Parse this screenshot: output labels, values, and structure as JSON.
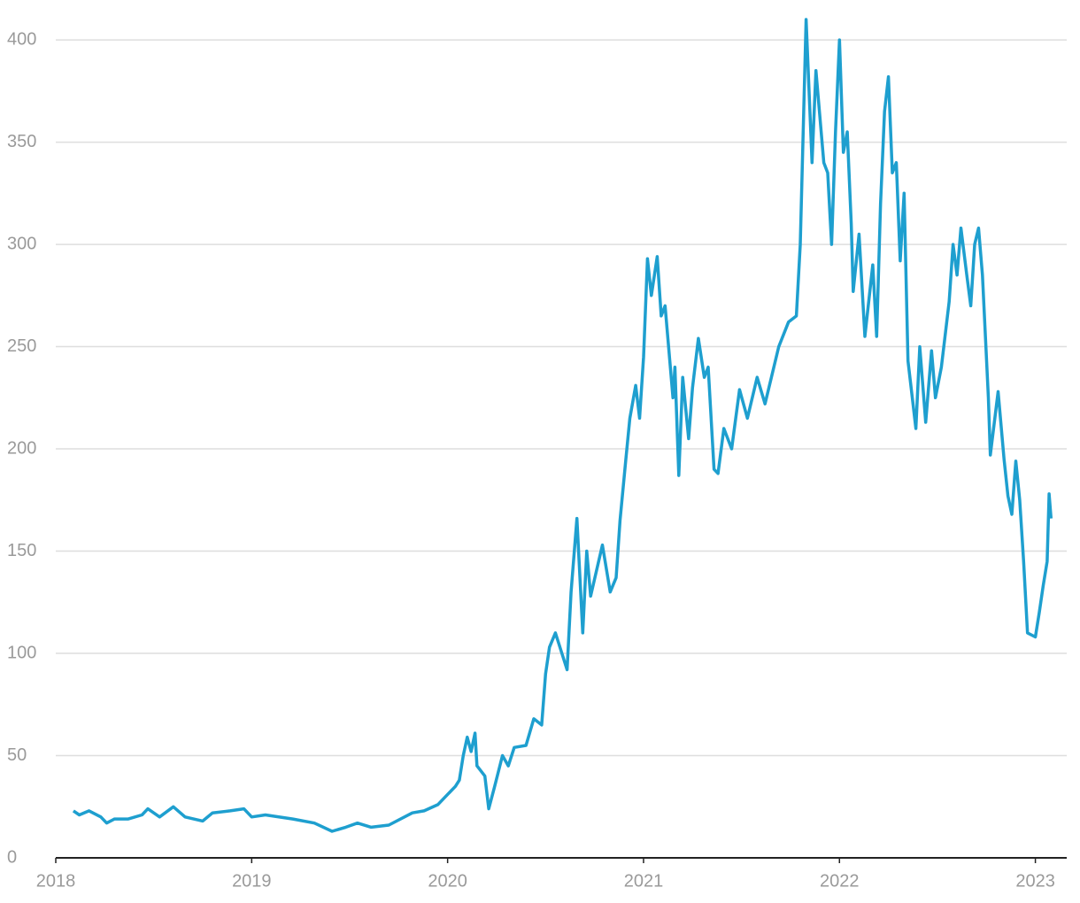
{
  "chart_data": {
    "type": "line",
    "x": [
      2018.09,
      2018.12,
      2018.17,
      2018.23,
      2018.26,
      2018.3,
      2018.37,
      2018.44,
      2018.47,
      2018.53,
      2018.6,
      2018.66,
      2018.75,
      2018.8,
      2018.89,
      2018.96,
      2019.0,
      2019.07,
      2019.21,
      2019.32,
      2019.41,
      2019.48,
      2019.54,
      2019.61,
      2019.7,
      2019.82,
      2019.88,
      2019.95,
      2019.99,
      2020.04,
      2020.06,
      2020.08,
      2020.1,
      2020.12,
      2020.14,
      2020.15,
      2020.19,
      2020.21,
      2020.24,
      2020.28,
      2020.31,
      2020.34,
      2020.4,
      2020.44,
      2020.48,
      2020.5,
      2020.52,
      2020.55,
      2020.61,
      2020.63,
      2020.66,
      2020.69,
      2020.71,
      2020.73,
      2020.79,
      2020.83,
      2020.86,
      2020.88,
      2020.91,
      2020.93,
      2020.96,
      2020.98,
      2021.0,
      2021.02,
      2021.04,
      2021.07,
      2021.09,
      2021.11,
      2021.15,
      2021.16,
      2021.18,
      2021.2,
      2021.23,
      2021.25,
      2021.28,
      2021.31,
      2021.33,
      2021.36,
      2021.38,
      2021.41,
      2021.45,
      2021.49,
      2021.53,
      2021.58,
      2021.62,
      2021.69,
      2021.74,
      2021.78,
      2021.8,
      2021.83,
      2021.86,
      2021.88,
      2021.92,
      2021.94,
      2021.96,
      2021.98,
      2022.0,
      2022.02,
      2022.04,
      2022.06,
      2022.07,
      2022.1,
      2022.13,
      2022.17,
      2022.19,
      2022.21,
      2022.23,
      2022.25,
      2022.27,
      2022.29,
      2022.31,
      2022.33,
      2022.35,
      2022.39,
      2022.41,
      2022.44,
      2022.47,
      2022.49,
      2022.52,
      2022.56,
      2022.58,
      2022.6,
      2022.62,
      2022.65,
      2022.67,
      2022.69,
      2022.71,
      2022.73,
      2022.76,
      2022.77,
      2022.81,
      2022.84,
      2022.86,
      2022.88,
      2022.9,
      2022.92,
      2022.94,
      2022.96,
      2023.0,
      2023.02,
      2023.04,
      2023.06,
      2023.07,
      2023.08
    ],
    "series": [
      {
        "color": "#1e9fcf",
        "values": [
          23,
          21,
          23,
          20,
          17,
          19,
          19,
          21,
          24,
          20,
          25,
          20,
          18,
          22,
          23,
          24,
          20,
          21,
          19,
          17,
          13,
          15,
          17,
          15,
          16,
          22,
          23,
          26,
          30,
          35,
          38,
          50,
          59,
          52,
          61,
          45,
          40,
          24,
          35,
          50,
          45,
          54,
          55,
          68,
          65,
          90,
          103,
          110,
          92,
          130,
          166,
          110,
          150,
          128,
          153,
          130,
          137,
          165,
          195,
          215,
          231,
          215,
          245,
          293,
          275,
          294,
          265,
          270,
          225,
          240,
          187,
          235,
          205,
          230,
          254,
          235,
          240,
          190,
          188,
          210,
          200,
          229,
          215,
          235,
          222,
          250,
          262,
          265,
          300,
          410,
          340,
          385,
          340,
          335,
          300,
          355,
          400,
          345,
          355,
          310,
          277,
          305,
          255,
          290,
          255,
          320,
          365,
          382,
          335,
          340,
          292,
          325,
          243,
          210,
          250,
          213,
          248,
          225,
          240,
          272,
          300,
          285,
          308,
          285,
          270,
          300,
          308,
          285,
          225,
          197,
          228,
          195,
          177,
          168,
          194,
          175,
          145,
          110,
          108,
          120,
          133,
          145,
          178,
          166
        ]
      }
    ],
    "xlim": [
      2018,
      2023.16
    ],
    "xticks": [
      2018,
      2019,
      2020,
      2021,
      2022,
      2023
    ],
    "ylim": [
      0,
      410
    ],
    "yticks": [
      0,
      50,
      100,
      150,
      200,
      250,
      300,
      350,
      400
    ],
    "grid": true
  }
}
